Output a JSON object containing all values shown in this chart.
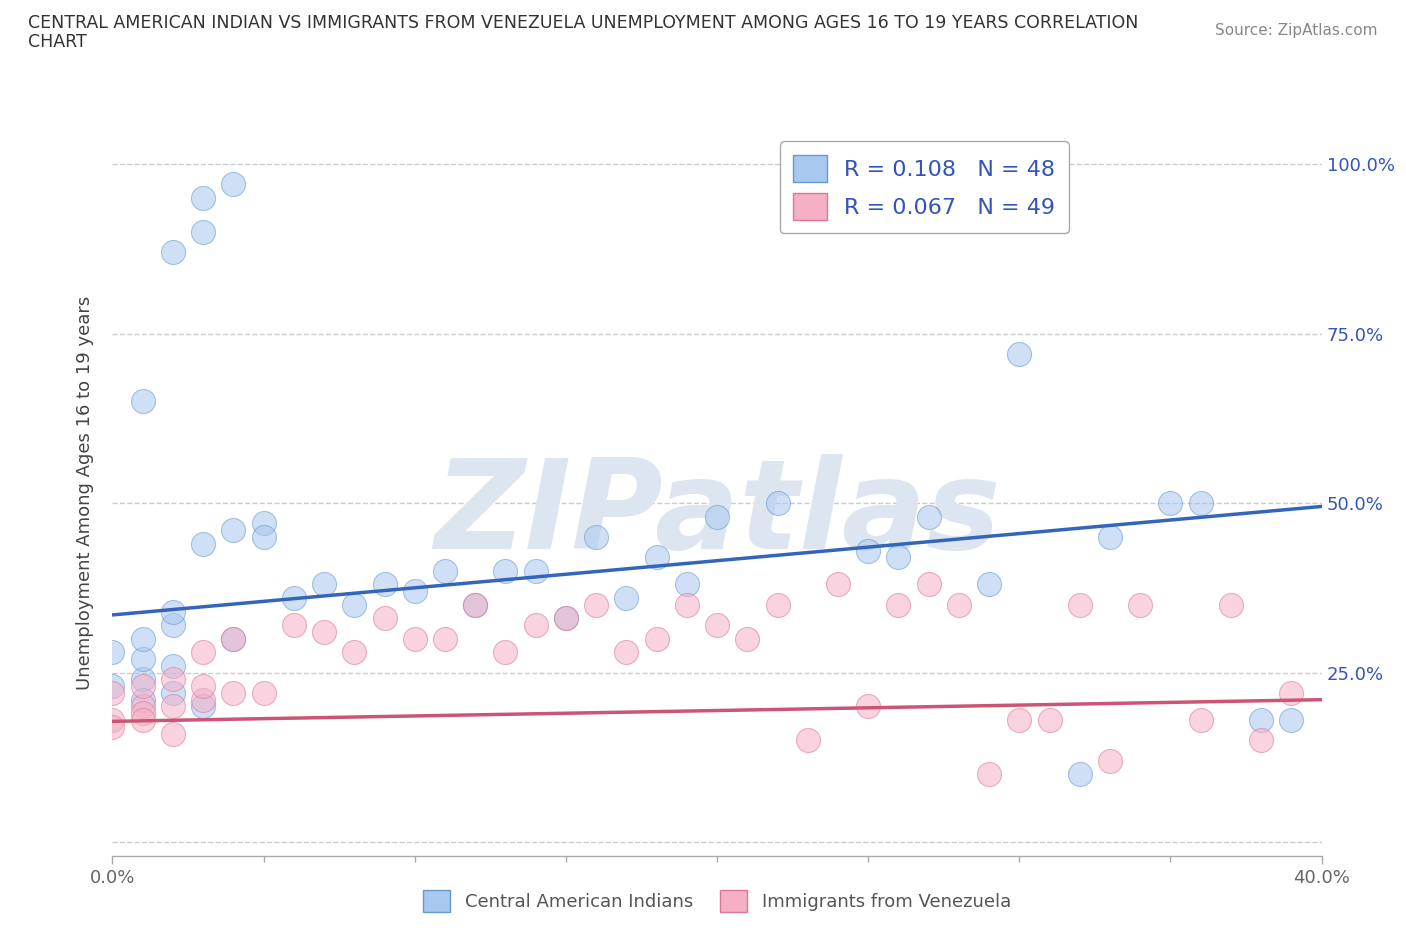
{
  "title_line1": "CENTRAL AMERICAN INDIAN VS IMMIGRANTS FROM VENEZUELA UNEMPLOYMENT AMONG AGES 16 TO 19 YEARS CORRELATION",
  "title_line2": "CHART",
  "source_text": "Source: ZipAtlas.com",
  "ylabel": "Unemployment Among Ages 16 to 19 years",
  "xlim": [
    0.0,
    0.4
  ],
  "ylim": [
    -0.02,
    1.05
  ],
  "xticks": [
    0.0,
    0.4
  ],
  "xticklabels": [
    "0.0%",
    "40.0%"
  ],
  "xticks_minor": [
    0.05,
    0.1,
    0.15,
    0.2,
    0.25,
    0.3,
    0.35
  ],
  "yticks_right": [
    0.25,
    0.5,
    0.75,
    1.0
  ],
  "yticklabels_right": [
    "25.0%",
    "50.0%",
    "75.0%",
    "100.0%"
  ],
  "yticks_grid": [
    0.0,
    0.25,
    0.5,
    0.75,
    1.0
  ],
  "blue_R": 0.108,
  "blue_N": 48,
  "pink_R": 0.067,
  "pink_N": 49,
  "blue_color": "#a8c8f0",
  "pink_color": "#f5b0c5",
  "blue_edge_color": "#6699cc",
  "pink_edge_color": "#dd7799",
  "blue_line_color": "#3366bb",
  "pink_line_color": "#cc5577",
  "watermark": "ZIPatlas",
  "watermark_color": "#dde6f0",
  "background_color": "#ffffff",
  "grid_color": "#cccccc",
  "legend_text_color": "#3355bb",
  "blue_line_x0": 0.0,
  "blue_line_y0": 0.335,
  "blue_line_x1": 0.4,
  "blue_line_y1": 0.495,
  "pink_line_x0": 0.0,
  "pink_line_y0": 0.178,
  "pink_line_x1": 0.4,
  "pink_line_y1": 0.21,
  "blue_scatter_x": [
    0.03,
    0.04,
    0.02,
    0.03,
    0.01,
    0.02,
    0.01,
    0.0,
    0.01,
    0.02,
    0.0,
    0.01,
    0.02,
    0.03,
    0.01,
    0.05,
    0.04,
    0.02,
    0.06,
    0.05,
    0.03,
    0.04,
    0.08,
    0.07,
    0.1,
    0.11,
    0.12,
    0.09,
    0.15,
    0.14,
    0.17,
    0.18,
    0.2,
    0.22,
    0.25,
    0.19,
    0.27,
    0.16,
    0.3,
    0.13,
    0.35,
    0.38,
    0.26,
    0.29,
    0.33,
    0.36,
    0.39,
    0.32
  ],
  "blue_scatter_y": [
    0.95,
    0.97,
    0.87,
    0.9,
    0.24,
    0.22,
    0.21,
    0.23,
    0.27,
    0.26,
    0.28,
    0.3,
    0.32,
    0.2,
    0.65,
    0.47,
    0.3,
    0.34,
    0.36,
    0.45,
    0.44,
    0.46,
    0.35,
    0.38,
    0.37,
    0.4,
    0.35,
    0.38,
    0.33,
    0.4,
    0.36,
    0.42,
    0.48,
    0.5,
    0.43,
    0.38,
    0.48,
    0.45,
    0.72,
    0.4,
    0.5,
    0.18,
    0.42,
    0.38,
    0.45,
    0.5,
    0.18,
    0.1
  ],
  "pink_scatter_x": [
    0.0,
    0.01,
    0.02,
    0.0,
    0.01,
    0.03,
    0.02,
    0.01,
    0.0,
    0.02,
    0.03,
    0.04,
    0.01,
    0.03,
    0.05,
    0.04,
    0.06,
    0.07,
    0.08,
    0.09,
    0.1,
    0.12,
    0.11,
    0.14,
    0.15,
    0.13,
    0.16,
    0.18,
    0.17,
    0.2,
    0.19,
    0.22,
    0.21,
    0.24,
    0.23,
    0.25,
    0.27,
    0.26,
    0.28,
    0.3,
    0.29,
    0.32,
    0.31,
    0.34,
    0.33,
    0.36,
    0.38,
    0.37,
    0.39
  ],
  "pink_scatter_y": [
    0.18,
    0.2,
    0.16,
    0.22,
    0.19,
    0.21,
    0.24,
    0.23,
    0.17,
    0.2,
    0.23,
    0.22,
    0.18,
    0.28,
    0.22,
    0.3,
    0.32,
    0.31,
    0.28,
    0.33,
    0.3,
    0.35,
    0.3,
    0.32,
    0.33,
    0.28,
    0.35,
    0.3,
    0.28,
    0.32,
    0.35,
    0.35,
    0.3,
    0.38,
    0.15,
    0.2,
    0.38,
    0.35,
    0.35,
    0.18,
    0.1,
    0.35,
    0.18,
    0.35,
    0.12,
    0.18,
    0.15,
    0.35,
    0.22
  ]
}
